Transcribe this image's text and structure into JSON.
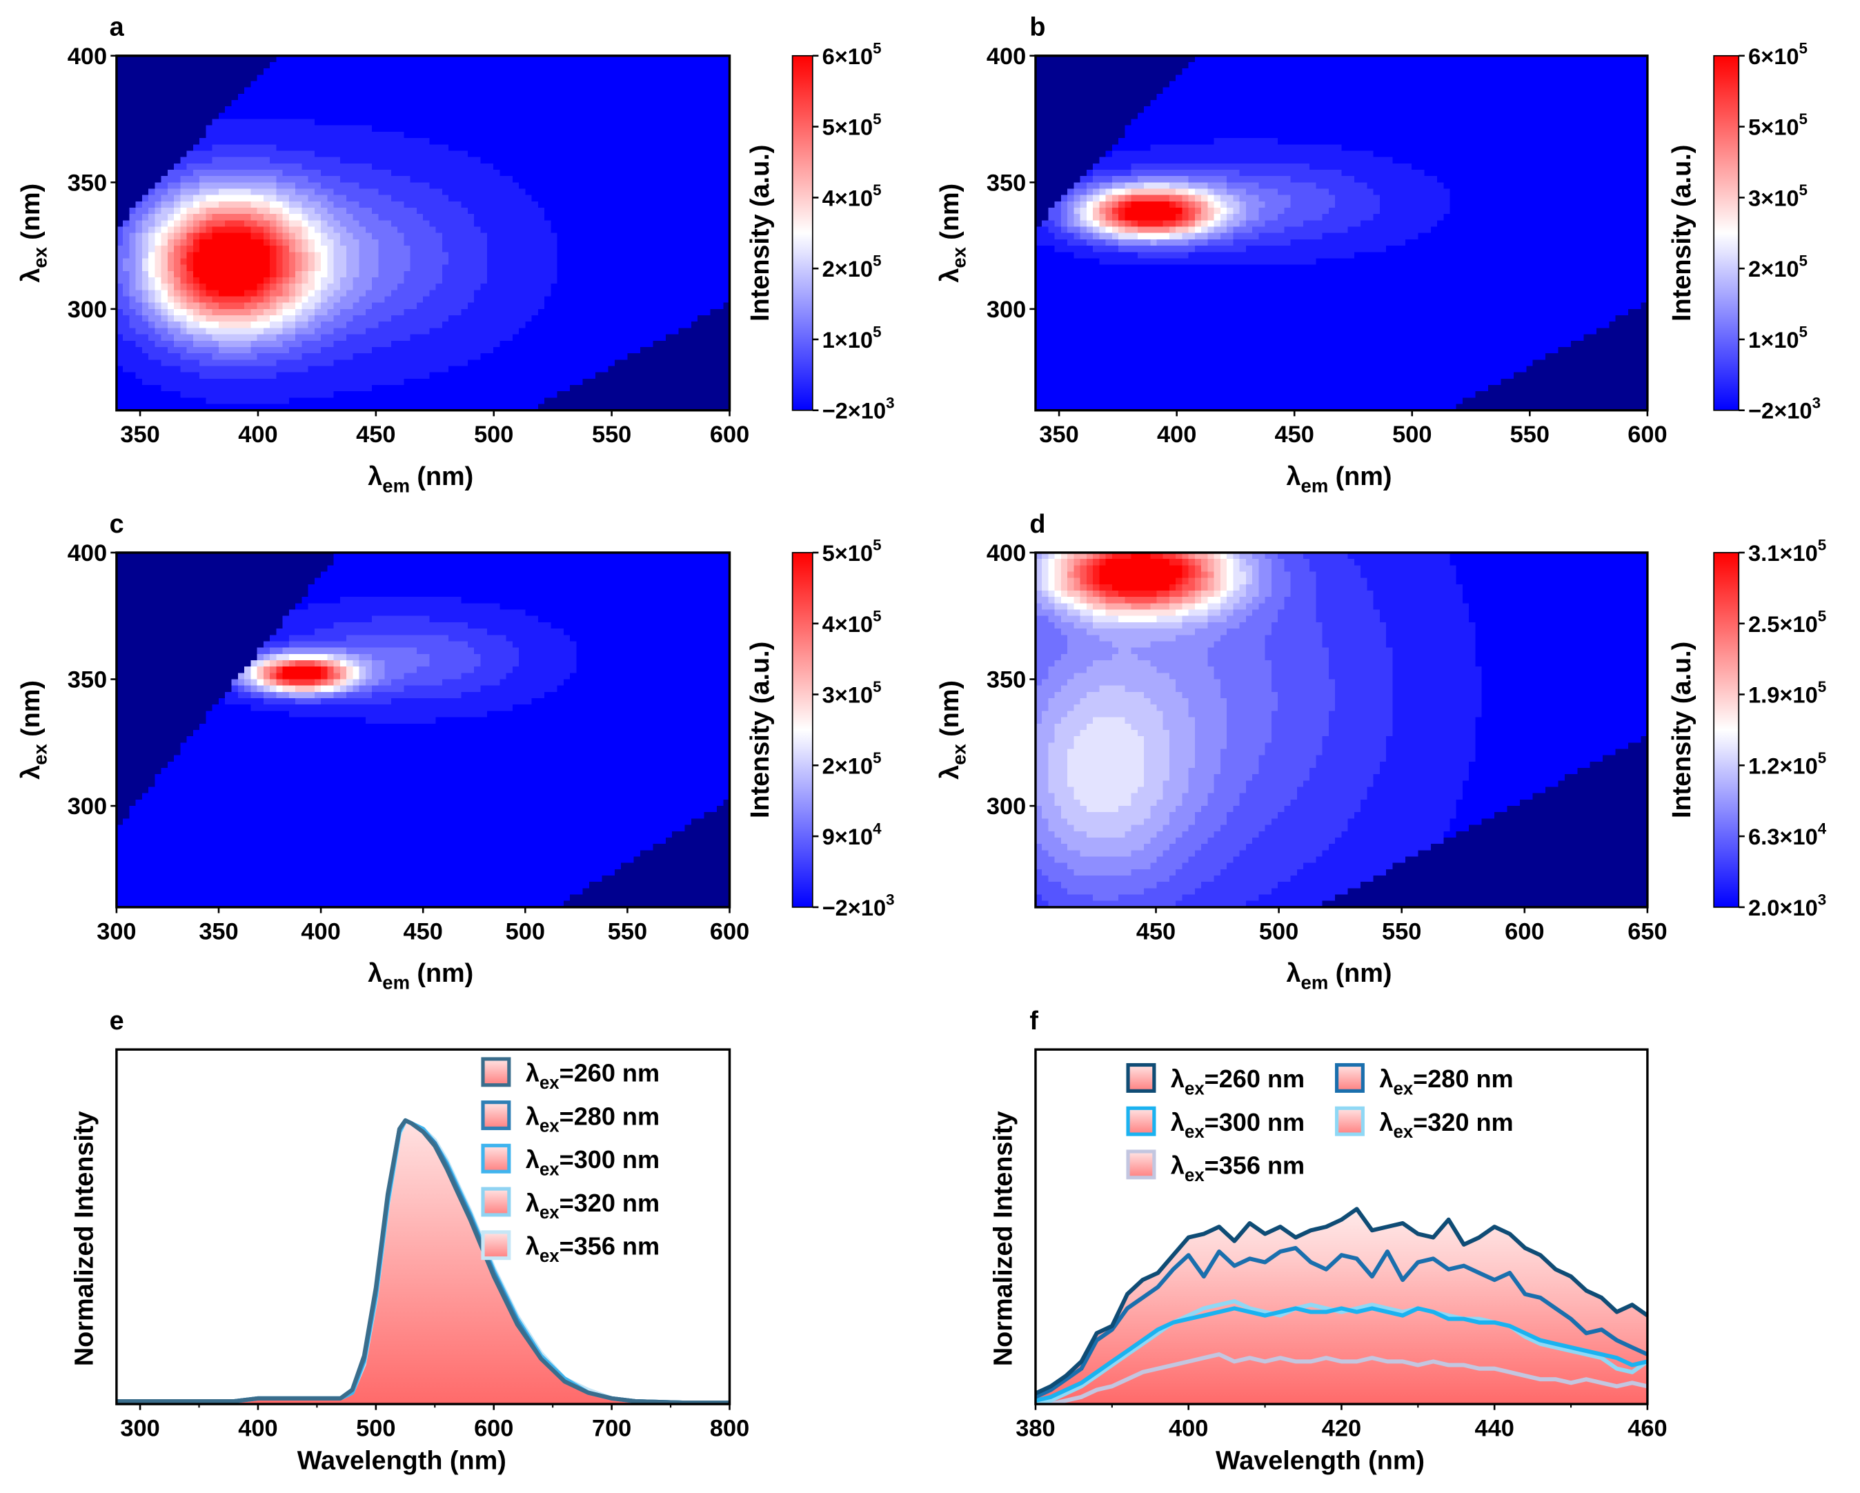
{
  "chart_data": [
    {
      "type": "heatmap",
      "panel_label": "a",
      "xlabel": {
        "sym": "λ",
        "sub": "em",
        "unit": "(nm)"
      },
      "ylabel": {
        "sym": "λ",
        "sub": "ex",
        "unit": "(nm)"
      },
      "xlim": [
        340,
        600
      ],
      "ylim": [
        260,
        400
      ],
      "xticks": [
        "350",
        "400",
        "450",
        "500",
        "550",
        "600"
      ],
      "xtick_values": [
        350,
        400,
        450,
        500,
        550,
        600
      ],
      "yticks": [
        "300",
        "350",
        "400"
      ],
      "ytick_values": [
        300,
        350,
        400
      ],
      "blank_offset_nm": 8,
      "peaks": [
        {
          "em": 387,
          "ex": 318,
          "sigma_em": 24,
          "sigma_ex": 19,
          "intensity": 620000
        },
        {
          "em": 430,
          "ex": 320,
          "sigma_em": 45,
          "sigma_ex": 24,
          "intensity": 150000
        }
      ],
      "colorbar": {
        "label": "Intensity (a.u.)",
        "min": -2000,
        "max": 600000,
        "ticks": [
          {
            "base": "6×10",
            "exp": "5"
          },
          {
            "base": "5×10",
            "exp": "5"
          },
          {
            "base": "4×10",
            "exp": "5"
          },
          {
            "base": "2×10",
            "exp": "5"
          },
          {
            "base": "1×10",
            "exp": "5"
          },
          {
            "base": "−2×10",
            "exp": "3"
          }
        ]
      }
    },
    {
      "type": "heatmap",
      "panel_label": "b",
      "xlabel": {
        "sym": "λ",
        "sub": "em",
        "unit": "(nm)"
      },
      "ylabel": {
        "sym": "λ",
        "sub": "ex",
        "unit": "(nm)"
      },
      "xlim": [
        340,
        600
      ],
      "ylim": [
        260,
        400
      ],
      "xticks": [
        "350",
        "400",
        "450",
        "500",
        "550",
        "600"
      ],
      "xtick_values": [
        350,
        400,
        450,
        500,
        550,
        600
      ],
      "yticks": [
        "300",
        "350",
        "400"
      ],
      "ytick_values": [
        300,
        350,
        400
      ],
      "blank_offset_nm": 8,
      "peaks": [
        {
          "em": 388,
          "ex": 338,
          "sigma_em": 20,
          "sigma_ex": 7,
          "intensity": 620000
        },
        {
          "em": 430,
          "ex": 342,
          "sigma_em": 42,
          "sigma_ex": 12,
          "intensity": 120000
        }
      ],
      "colorbar": {
        "label": "Intensity (a.u.)",
        "min": -2000,
        "max": 600000,
        "ticks": [
          {
            "base": "6×10",
            "exp": "5"
          },
          {
            "base": "5×10",
            "exp": "5"
          },
          {
            "base": "3×10",
            "exp": "5"
          },
          {
            "base": "2×10",
            "exp": "5"
          },
          {
            "base": "1×10",
            "exp": "5"
          },
          {
            "base": "−2×10",
            "exp": "3"
          }
        ]
      }
    },
    {
      "type": "heatmap",
      "panel_label": "c",
      "xlabel": {
        "sym": "λ",
        "sub": "em",
        "unit": "(nm)"
      },
      "ylabel": {
        "sym": "λ",
        "sub": "ex",
        "unit": "(nm)"
      },
      "xlim": [
        300,
        600
      ],
      "ylim": [
        260,
        400
      ],
      "xticks": [
        "300",
        "350",
        "400",
        "450",
        "500",
        "550",
        "600"
      ],
      "xtick_values": [
        300,
        350,
        400,
        450,
        500,
        550,
        600
      ],
      "yticks": [
        "300",
        "350",
        "400"
      ],
      "ytick_values": [
        300,
        350,
        400
      ],
      "blank_offset_nm": 9,
      "peaks": [
        {
          "em": 390,
          "ex": 352,
          "sigma_em": 18,
          "sigma_ex": 5,
          "intensity": 520000
        },
        {
          "em": 440,
          "ex": 358,
          "sigma_em": 42,
          "sigma_ex": 12,
          "intensity": 100000
        }
      ],
      "colorbar": {
        "label": "Intensity (a.u.)",
        "min": -2000,
        "max": 500000,
        "ticks": [
          {
            "base": "5×10",
            "exp": "5"
          },
          {
            "base": "4×10",
            "exp": "5"
          },
          {
            "base": "3×10",
            "exp": "5"
          },
          {
            "base": "2×10",
            "exp": "5"
          },
          {
            "base": "9×10",
            "exp": "4"
          },
          {
            "base": "−2×10",
            "exp": "3"
          }
        ]
      }
    },
    {
      "type": "heatmap",
      "panel_label": "d",
      "xlabel": {
        "sym": "λ",
        "sub": "em",
        "unit": "(nm)"
      },
      "ylabel": {
        "sym": "λ",
        "sub": "ex",
        "unit": "(nm)"
      },
      "xlim": [
        401,
        650
      ],
      "ylim": [
        260,
        400
      ],
      "xticks": [
        "450",
        "500",
        "550",
        "600",
        "650"
      ],
      "xtick_values": [
        450,
        500,
        550,
        600,
        650
      ],
      "yticks": [
        "300",
        "350",
        "400"
      ],
      "ytick_values": [
        300,
        350,
        400
      ],
      "blank_offset_nm": 3,
      "peaks": [
        {
          "em": 443,
          "ex": 392,
          "sigma_em": 26,
          "sigma_ex": 11,
          "intensity": 310000
        },
        {
          "em": 425,
          "ex": 310,
          "sigma_em": 28,
          "sigma_ex": 35,
          "intensity": 95000
        },
        {
          "em": 465,
          "ex": 345,
          "sigma_em": 60,
          "sigma_ex": 60,
          "intensity": 70000
        }
      ],
      "colorbar": {
        "label": "Intensity (a.u.)",
        "min": 2000,
        "max": 310000,
        "ticks": [
          {
            "base": "3.1×10",
            "exp": "5"
          },
          {
            "base": "2.5×10",
            "exp": "5"
          },
          {
            "base": "1.9×10",
            "exp": "5"
          },
          {
            "base": "1.2×10",
            "exp": "5"
          },
          {
            "base": "6.3×10",
            "exp": "4"
          },
          {
            "base": "2.0×10",
            "exp": "3"
          }
        ]
      }
    },
    {
      "type": "area",
      "panel_label": "e",
      "xlabel": "Wavelength (nm)",
      "ylabel": "Normalized Intensity",
      "xlim": [
        280,
        800
      ],
      "ylim": [
        0,
        1.25
      ],
      "xticks": [
        "300",
        "400",
        "500",
        "600",
        "700",
        "800"
      ],
      "xtick_values": [
        300,
        400,
        500,
        600,
        700,
        800
      ],
      "legend_position": "top-right",
      "x": [
        280,
        300,
        320,
        340,
        360,
        380,
        400,
        420,
        440,
        460,
        470,
        480,
        490,
        500,
        510,
        520,
        525,
        530,
        540,
        550,
        560,
        570,
        580,
        590,
        600,
        620,
        640,
        660,
        680,
        700,
        720,
        760,
        800
      ],
      "series": [
        {
          "name": {
            "sym": "λ",
            "sub": "ex",
            "rest": "=260 nm"
          },
          "color": "#3a6d8c",
          "values": [
            0.01,
            0.01,
            0.01,
            0.01,
            0.01,
            0.01,
            0.02,
            0.02,
            0.02,
            0.02,
            0.02,
            0.05,
            0.17,
            0.41,
            0.74,
            0.97,
            1.0,
            0.99,
            0.96,
            0.91,
            0.83,
            0.74,
            0.65,
            0.55,
            0.45,
            0.28,
            0.16,
            0.08,
            0.04,
            0.02,
            0.01,
            0.005,
            0.005
          ]
        },
        {
          "name": {
            "sym": "λ",
            "sub": "ex",
            "rest": "=280 nm"
          },
          "color": "#2f7fb5",
          "values": [
            0.01,
            0.01,
            0.01,
            0.01,
            0.01,
            0.01,
            0.02,
            0.02,
            0.02,
            0.02,
            0.02,
            0.05,
            0.16,
            0.4,
            0.73,
            0.97,
            1.0,
            0.99,
            0.96,
            0.92,
            0.84,
            0.75,
            0.66,
            0.56,
            0.46,
            0.29,
            0.16,
            0.08,
            0.04,
            0.02,
            0.01,
            0.005,
            0.005
          ]
        },
        {
          "name": {
            "sym": "λ",
            "sub": "ex",
            "rest": "=300 nm"
          },
          "color": "#3fb4ee",
          "values": [
            0.01,
            0.01,
            0.01,
            0.01,
            0.01,
            0.01,
            0.02,
            0.02,
            0.02,
            0.02,
            0.02,
            0.04,
            0.15,
            0.38,
            0.71,
            0.96,
            1.0,
            0.99,
            0.97,
            0.92,
            0.85,
            0.76,
            0.67,
            0.57,
            0.47,
            0.3,
            0.17,
            0.09,
            0.04,
            0.02,
            0.01,
            0.005,
            0.005
          ]
        },
        {
          "name": {
            "sym": "λ",
            "sub": "ex",
            "rest": "=320 nm"
          },
          "color": "#8fd3f2",
          "values": [
            0.01,
            0.01,
            0.01,
            0.01,
            0.01,
            0.01,
            0.02,
            0.02,
            0.02,
            0.02,
            0.02,
            0.04,
            0.15,
            0.38,
            0.71,
            0.96,
            1.0,
            0.99,
            0.97,
            0.92,
            0.85,
            0.76,
            0.67,
            0.57,
            0.47,
            0.3,
            0.17,
            0.09,
            0.04,
            0.02,
            0.01,
            0.005,
            0.005
          ]
        },
        {
          "name": {
            "sym": "λ",
            "sub": "ex",
            "rest": "=356 nm"
          },
          "color": "#c6e6f6",
          "values": [
            0.01,
            0.01,
            0.01,
            0.01,
            0.01,
            0.01,
            0.02,
            0.02,
            0.02,
            0.02,
            0.02,
            0.04,
            0.14,
            0.37,
            0.7,
            0.95,
            1.0,
            0.99,
            0.97,
            0.93,
            0.86,
            0.77,
            0.68,
            0.58,
            0.48,
            0.31,
            0.18,
            0.09,
            0.05,
            0.02,
            0.01,
            0.005,
            0.005
          ]
        }
      ]
    },
    {
      "type": "area",
      "panel_label": "f",
      "xlabel": "Wavelength (nm)",
      "ylabel": "Normalized Intensity",
      "xlim": [
        380,
        460
      ],
      "ylim": [
        0,
        1
      ],
      "xticks": [
        "380",
        "400",
        "420",
        "440",
        "460"
      ],
      "xtick_values": [
        380,
        400,
        420,
        440,
        460
      ],
      "legend_position": "top (two columns)",
      "x": [
        380,
        382,
        384,
        386,
        388,
        390,
        392,
        394,
        396,
        398,
        400,
        402,
        404,
        406,
        408,
        410,
        412,
        414,
        416,
        418,
        420,
        422,
        424,
        426,
        428,
        430,
        432,
        434,
        436,
        438,
        440,
        442,
        444,
        446,
        448,
        450,
        452,
        454,
        456,
        458,
        460
      ],
      "series": [
        {
          "name": {
            "sym": "λ",
            "sub": "ex",
            "rest": "=260 nm"
          },
          "color": "#0f4c75",
          "values": [
            0.03,
            0.05,
            0.08,
            0.12,
            0.2,
            0.22,
            0.31,
            0.35,
            0.37,
            0.42,
            0.47,
            0.48,
            0.5,
            0.46,
            0.51,
            0.48,
            0.5,
            0.47,
            0.49,
            0.5,
            0.52,
            0.55,
            0.49,
            0.5,
            0.51,
            0.48,
            0.47,
            0.52,
            0.45,
            0.47,
            0.5,
            0.48,
            0.44,
            0.42,
            0.38,
            0.36,
            0.32,
            0.3,
            0.26,
            0.28,
            0.25
          ]
        },
        {
          "name": {
            "sym": "λ",
            "sub": "ex",
            "rest": "=280 nm"
          },
          "color": "#1a6fad",
          "values": [
            0.02,
            0.04,
            0.07,
            0.1,
            0.18,
            0.21,
            0.27,
            0.3,
            0.33,
            0.38,
            0.42,
            0.36,
            0.43,
            0.39,
            0.41,
            0.4,
            0.43,
            0.44,
            0.4,
            0.38,
            0.42,
            0.41,
            0.36,
            0.43,
            0.35,
            0.4,
            0.41,
            0.38,
            0.39,
            0.37,
            0.35,
            0.37,
            0.31,
            0.3,
            0.27,
            0.24,
            0.2,
            0.21,
            0.18,
            0.16,
            0.14
          ]
        },
        {
          "name": {
            "sym": "λ",
            "sub": "ex",
            "rest": "=300 nm"
          },
          "color": "#1ab2f0",
          "values": [
            0.01,
            0.02,
            0.04,
            0.06,
            0.09,
            0.12,
            0.15,
            0.18,
            0.21,
            0.23,
            0.24,
            0.25,
            0.26,
            0.27,
            0.26,
            0.25,
            0.26,
            0.27,
            0.26,
            0.26,
            0.27,
            0.26,
            0.27,
            0.26,
            0.25,
            0.27,
            0.26,
            0.24,
            0.24,
            0.23,
            0.23,
            0.22,
            0.2,
            0.18,
            0.17,
            0.16,
            0.15,
            0.14,
            0.13,
            0.11,
            0.12
          ]
        },
        {
          "name": {
            "sym": "λ",
            "sub": "ex",
            "rest": "=320 nm"
          },
          "color": "#8fd8f5",
          "values": [
            0.0,
            0.01,
            0.03,
            0.05,
            0.08,
            0.11,
            0.14,
            0.17,
            0.2,
            0.23,
            0.25,
            0.27,
            0.28,
            0.29,
            0.27,
            0.26,
            0.25,
            0.27,
            0.28,
            0.27,
            0.26,
            0.27,
            0.28,
            0.27,
            0.26,
            0.27,
            0.26,
            0.25,
            0.24,
            0.24,
            0.23,
            0.22,
            0.19,
            0.17,
            0.16,
            0.15,
            0.14,
            0.13,
            0.1,
            0.09,
            0.12
          ]
        },
        {
          "name": {
            "sym": "λ",
            "sub": "ex",
            "rest": "=356 nm"
          },
          "color": "#c3c6e0",
          "values": [
            0.0,
            0.0,
            0.01,
            0.02,
            0.04,
            0.05,
            0.07,
            0.09,
            0.1,
            0.11,
            0.12,
            0.13,
            0.14,
            0.12,
            0.13,
            0.12,
            0.13,
            0.12,
            0.12,
            0.13,
            0.12,
            0.12,
            0.13,
            0.12,
            0.12,
            0.11,
            0.12,
            0.11,
            0.11,
            0.1,
            0.1,
            0.09,
            0.08,
            0.07,
            0.07,
            0.06,
            0.07,
            0.06,
            0.05,
            0.06,
            0.05
          ]
        }
      ]
    }
  ],
  "colors": {
    "low": "#0000ff",
    "mid": "#ffffff",
    "high": "#ff0000",
    "blank": "#00008f",
    "fill_top": "#ffdede",
    "fill_bottom": "#ff6e6e"
  }
}
